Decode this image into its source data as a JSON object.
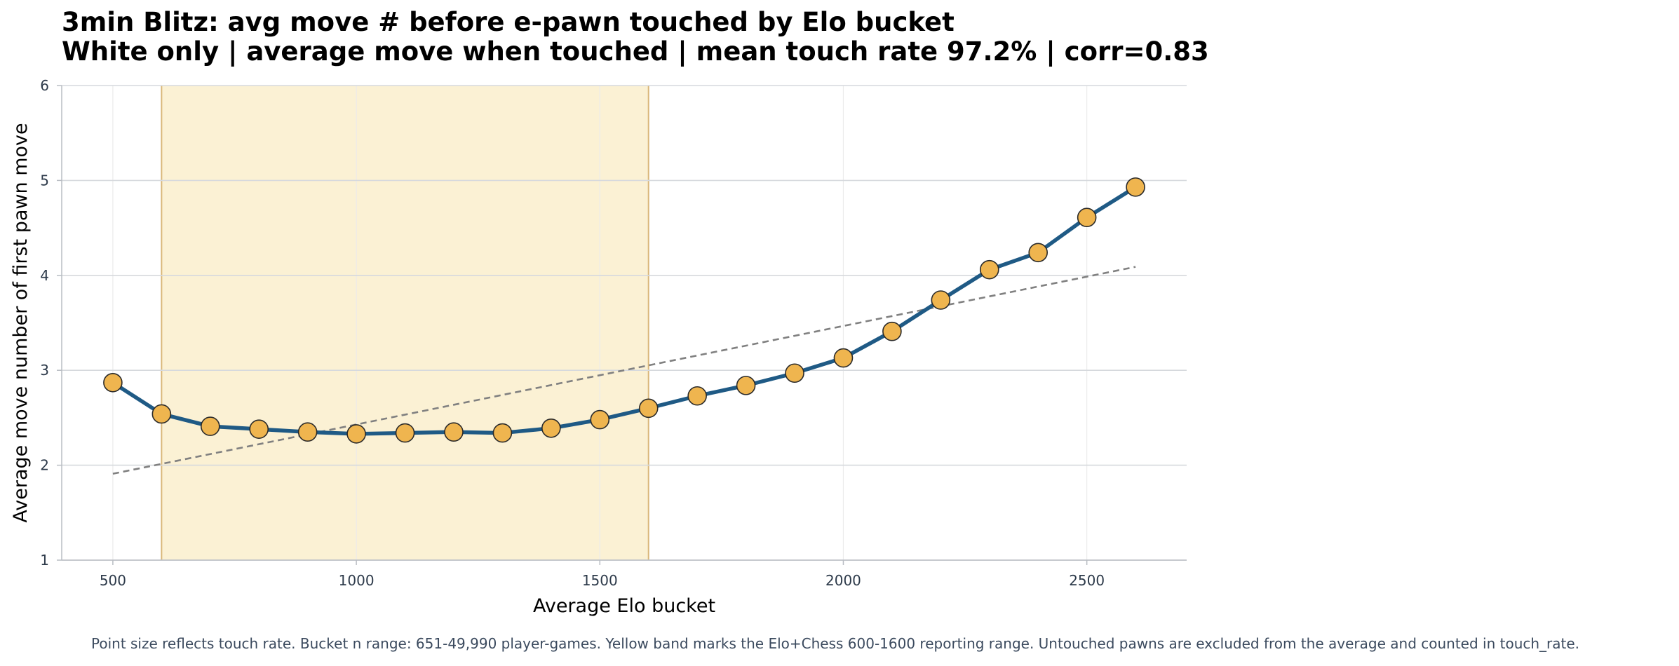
{
  "chart_data": {
    "type": "line",
    "title": "3min Blitz: avg move # before e-pawn touched by Elo bucket",
    "subtitle": "White only | average move when touched | mean touch rate 97.2% | corr=0.83",
    "xlabel": "Average Elo bucket",
    "ylabel": "Average move number of first pawn move",
    "xlim": [
      395,
      2705
    ],
    "ylim": [
      1,
      6
    ],
    "x_ticks": [
      500,
      1000,
      1500,
      2000,
      2500
    ],
    "y_ticks": [
      1,
      2,
      3,
      4,
      5,
      6
    ],
    "grid": true,
    "highlight_band": {
      "x_start": 600,
      "x_end": 1600,
      "color": "#fbf1d4",
      "edge_color": "#d9b77a"
    },
    "series": [
      {
        "x": [
          500,
          600,
          700,
          800,
          900,
          1000,
          1100,
          1200,
          1300,
          1400,
          1500,
          1600,
          1700,
          1800,
          1900,
          2000,
          2100,
          2200,
          2300,
          2400,
          2500,
          2600
        ],
        "values": [
          2.87,
          2.54,
          2.41,
          2.38,
          2.35,
          2.33,
          2.34,
          2.35,
          2.34,
          2.39,
          2.48,
          2.6,
          2.73,
          2.84,
          2.97,
          3.13,
          3.41,
          3.74,
          4.06,
          4.24,
          4.61,
          4.93
        ],
        "line_color": "#1f5a85",
        "marker_color": "#efb54f"
      }
    ],
    "trendline": {
      "x": [
        500,
        2600
      ],
      "y": [
        1.91,
        4.09
      ],
      "color": "#808080",
      "style": "dashed"
    },
    "caption": "Point size reflects touch rate. Bucket n range: 651-49,990 player-games. Yellow band marks the Elo+Chess 600-1600 reporting range. Untouched pawns are excluded from the average and counted in touch_rate."
  }
}
